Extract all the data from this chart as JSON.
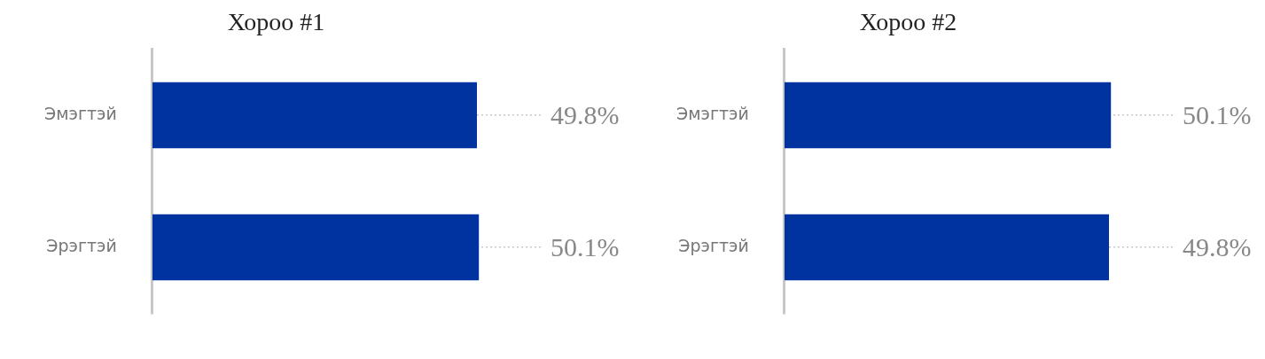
{
  "chart_data": [
    {
      "type": "bar",
      "orientation": "horizontal",
      "title": "Хороо #1",
      "categories": [
        "Эмэгтэй",
        "Эрэгтэй"
      ],
      "values": [
        49.8,
        50.1
      ],
      "value_labels": [
        "49.8%",
        "50.1%"
      ],
      "color": "#0033a0",
      "grid": "y",
      "legend": false
    },
    {
      "type": "bar",
      "orientation": "horizontal",
      "title": "Хороо #2",
      "categories": [
        "Эмэгтэй",
        "Эрэгтэй"
      ],
      "values": [
        50.1,
        49.8
      ],
      "value_labels": [
        "50.1%",
        "49.8%"
      ],
      "color": "#0033a0",
      "grid": "y",
      "legend": false
    }
  ]
}
